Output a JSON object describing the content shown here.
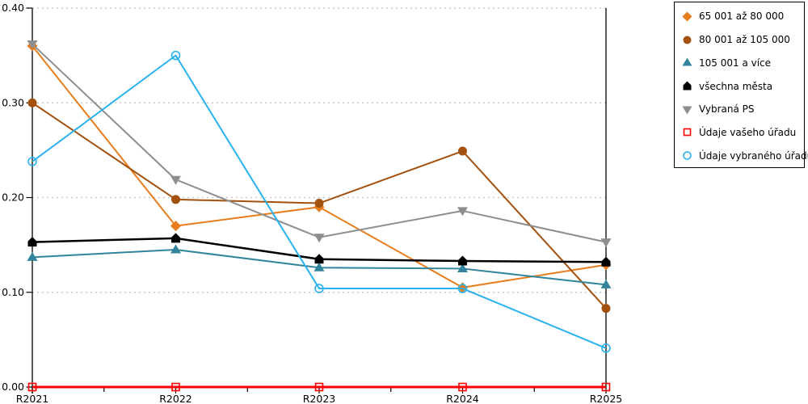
{
  "chart_data": {
    "type": "line",
    "title": "",
    "xlabel": "",
    "ylabel": "",
    "categories": [
      "R2021",
      "R2022",
      "R2023",
      "R2024",
      "R2025"
    ],
    "series": [
      {
        "name": "65 001 až 80 000",
        "color": "#E87D1E",
        "marker": "diamond",
        "line_width": 2,
        "values": [
          0.36,
          0.17,
          0.19,
          0.105,
          0.129
        ]
      },
      {
        "name": "80 001 až 105 000",
        "color": "#A3510E",
        "marker": "circle",
        "line_width": 2,
        "values": [
          0.3,
          0.198,
          0.194,
          0.249,
          0.083
        ]
      },
      {
        "name": "105 001 a více",
        "color": "#31849B",
        "marker": "triangle-up",
        "line_width": 2,
        "values": [
          0.137,
          0.145,
          0.126,
          0.125,
          0.108
        ]
      },
      {
        "name": "všechna města",
        "color": "#000000",
        "marker": "pentagon",
        "line_width": 2.5,
        "values": [
          0.153,
          0.157,
          0.135,
          0.133,
          0.132
        ]
      },
      {
        "name": "Vybraná PS",
        "color": "#8E8E8E",
        "marker": "triangle-down",
        "line_width": 2,
        "values": [
          0.362,
          0.219,
          0.158,
          0.186,
          0.153
        ]
      },
      {
        "name": "Údaje vašeho úřadu",
        "color": "#FF0000",
        "marker": "square-open",
        "line_width": 3,
        "values": [
          0.0,
          0.0,
          0.0,
          0.0,
          0.0
        ]
      },
      {
        "name": "Údaje vybraného úřadu",
        "color": "#29B2EE",
        "marker": "circle-open",
        "line_width": 2,
        "values": [
          0.238,
          0.35,
          0.104,
          0.104,
          0.041
        ]
      }
    ],
    "ylim": [
      0.0,
      0.4
    ],
    "y_ticks": [
      0.0,
      0.1,
      0.2,
      0.3,
      0.4
    ],
    "y_tick_labels": [
      "0.00",
      "0.10",
      "0.20",
      "0.30",
      "0.40"
    ],
    "grid": "horizontal-dotted",
    "legend_position": "top-right"
  },
  "colors": {
    "background": "#FFFFFF",
    "axis": "#000000",
    "grid": "#C9C9C9",
    "tick_text": "#000000"
  }
}
